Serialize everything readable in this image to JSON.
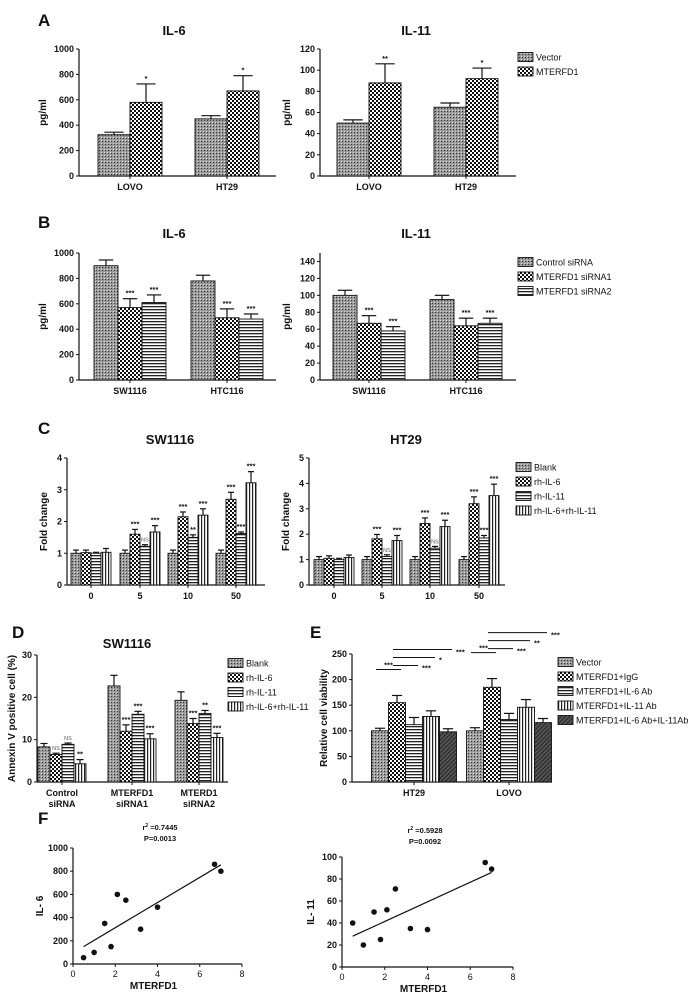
{
  "panel_labels": [
    "A",
    "B",
    "C",
    "D",
    "E",
    "F"
  ],
  "chart_data": [
    {
      "id": "A-IL6",
      "type": "bar",
      "title": "IL-6",
      "ylabel": "pg/ml",
      "ylim": [
        0,
        1000
      ],
      "yticks": [
        0,
        200,
        400,
        600,
        800,
        1000
      ],
      "categories": [
        "LOVO",
        "HT29"
      ],
      "legend": "none",
      "series": [
        {
          "name": "Vector",
          "values": [
            325,
            450
          ],
          "errors": [
            20,
            25
          ],
          "annotations": [
            "",
            ""
          ]
        },
        {
          "name": "MTERFD1",
          "values": [
            580,
            670
          ],
          "errors": [
            145,
            120
          ],
          "annotations": [
            "*",
            "*"
          ]
        }
      ]
    },
    {
      "id": "A-IL11",
      "type": "bar",
      "title": "IL-11",
      "ylabel": "pg/ml",
      "ylim": [
        0,
        120
      ],
      "yticks": [
        0,
        20,
        40,
        60,
        80,
        100,
        120
      ],
      "categories": [
        "LOVO",
        "HT29"
      ],
      "legend": "right",
      "series": [
        {
          "name": "Vector",
          "values": [
            50,
            65
          ],
          "errors": [
            3,
            4
          ],
          "annotations": [
            "",
            ""
          ]
        },
        {
          "name": "MTERFD1",
          "values": [
            88,
            92
          ],
          "errors": [
            18,
            10
          ],
          "annotations": [
            "**",
            "*"
          ]
        }
      ]
    },
    {
      "id": "B-IL6",
      "type": "bar",
      "title": "IL-6",
      "ylabel": "pg/ml",
      "ylim": [
        0,
        1000
      ],
      "yticks": [
        0,
        200,
        400,
        600,
        800,
        1000
      ],
      "categories": [
        "SW1116",
        "HTC116"
      ],
      "legend": "none",
      "series": [
        {
          "name": "Control siRNA",
          "values": [
            900,
            780
          ],
          "errors": [
            45,
            45
          ],
          "annotations": [
            "",
            ""
          ]
        },
        {
          "name": "MTERFD1 siRNA1",
          "values": [
            570,
            490
          ],
          "errors": [
            70,
            70
          ],
          "annotations": [
            "***",
            "***"
          ]
        },
        {
          "name": "MTERFD1 siRNA2",
          "values": [
            610,
            480
          ],
          "errors": [
            60,
            40
          ],
          "annotations": [
            "***",
            "***"
          ]
        }
      ]
    },
    {
      "id": "B-IL11",
      "type": "bar",
      "title": "IL-11",
      "ylabel": "pg/ml",
      "ylim": [
        0,
        150
      ],
      "yticks": [
        0,
        20,
        40,
        60,
        80,
        100,
        120,
        140
      ],
      "categories": [
        "SW1116",
        "HTC116"
      ],
      "legend": "right",
      "series": [
        {
          "name": "Control siRNA",
          "values": [
            100,
            95
          ],
          "errors": [
            6,
            5
          ],
          "annotations": [
            "",
            ""
          ]
        },
        {
          "name": "MTERFD1 siRNA1",
          "values": [
            67,
            64
          ],
          "errors": [
            9,
            9
          ],
          "annotations": [
            "***",
            "***"
          ]
        },
        {
          "name": "MTERFD1 siRNA2",
          "values": [
            58,
            67
          ],
          "errors": [
            5,
            6
          ],
          "annotations": [
            "***",
            "***"
          ]
        }
      ]
    },
    {
      "id": "C-SW1116",
      "type": "bar",
      "title": "SW1116",
      "ylabel": "Fold change",
      "ylim": [
        0,
        4
      ],
      "yticks": [
        0,
        1,
        2,
        3,
        4
      ],
      "categories": [
        "0",
        "5",
        "10",
        "50"
      ],
      "legend": "none",
      "series": [
        {
          "name": "Blank",
          "values": [
            1.0,
            1.0,
            1.0,
            1.0
          ],
          "errors": [
            0.1,
            0.1,
            0.1,
            0.1
          ],
          "annotations": [
            "",
            "",
            "",
            ""
          ]
        },
        {
          "name": "rh-IL-6",
          "values": [
            1.02,
            1.6,
            2.15,
            2.7
          ],
          "errors": [
            0.08,
            0.15,
            0.15,
            0.22
          ],
          "annotations": [
            "",
            "***",
            "***",
            "***"
          ]
        },
        {
          "name": "rh-IL-11",
          "values": [
            1.0,
            1.22,
            1.5,
            1.62
          ],
          "errors": [
            0.03,
            0.05,
            0.08,
            0.05
          ],
          "annotations": [
            "",
            "NS",
            "**",
            "***"
          ]
        },
        {
          "name": "rh-IL-6+rh-IL-11",
          "values": [
            1.03,
            1.67,
            2.2,
            3.22
          ],
          "errors": [
            0.12,
            0.2,
            0.2,
            0.35
          ],
          "annotations": [
            "",
            "***",
            "***",
            "***"
          ]
        }
      ]
    },
    {
      "id": "C-HT29",
      "type": "bar",
      "title": "HT29",
      "ylabel": "Fold change",
      "ylim": [
        0,
        5
      ],
      "yticks": [
        0,
        1,
        2,
        3,
        4,
        5
      ],
      "categories": [
        "0",
        "5",
        "10",
        "50"
      ],
      "legend": "right",
      "series": [
        {
          "name": "Blank",
          "values": [
            1.0,
            1.0,
            1.0,
            1.0
          ],
          "errors": [
            0.12,
            0.12,
            0.12,
            0.12
          ],
          "annotations": [
            "",
            "",
            "",
            ""
          ]
        },
        {
          "name": "rh-IL-6",
          "values": [
            1.05,
            1.82,
            2.42,
            3.2
          ],
          "errors": [
            0.1,
            0.17,
            0.22,
            0.27
          ],
          "annotations": [
            "",
            "***",
            "***",
            "***"
          ]
        },
        {
          "name": "rh-IL-11",
          "values": [
            1.0,
            1.12,
            1.45,
            1.85
          ],
          "errors": [
            0.05,
            0.07,
            0.07,
            0.1
          ],
          "annotations": [
            "",
            "NS",
            "NS",
            "***"
          ]
        },
        {
          "name": "rh-IL-6+rh-IL-11",
          "values": [
            1.08,
            1.75,
            2.3,
            3.52
          ],
          "errors": [
            0.1,
            0.2,
            0.25,
            0.45
          ],
          "annotations": [
            "",
            "***",
            "***",
            "***"
          ]
        }
      ]
    },
    {
      "id": "D",
      "type": "bar",
      "title": "SW1116",
      "ylabel": "Annexin V positive cell (%)",
      "ylim": [
        0,
        30
      ],
      "yticks": [
        0,
        10,
        20,
        30
      ],
      "categories": [
        "Control siRNA",
        "MTERFD1 siRNA1",
        "MTERD1 siRNA2"
      ],
      "legend": "right",
      "series": [
        {
          "name": "Blank",
          "values": [
            8.3,
            22.7,
            19.3
          ],
          "errors": [
            0.8,
            2.5,
            2.0
          ],
          "annotations": [
            "",
            "",
            ""
          ]
        },
        {
          "name": "rh-IL-6",
          "values": [
            6.5,
            12.0,
            13.8
          ],
          "errors": [
            0.3,
            1.5,
            1.2
          ],
          "annotations": [
            "NS",
            "***",
            "***"
          ]
        },
        {
          "name": "rh-IL-11",
          "values": [
            8.9,
            16.0,
            16.2
          ],
          "errors": [
            0.3,
            0.7,
            0.7
          ],
          "annotations": [
            "NS",
            "***",
            "**"
          ]
        },
        {
          "name": "rh-IL-6+rh-IL-11",
          "values": [
            4.3,
            10.2,
            10.5
          ],
          "errors": [
            1.0,
            1.2,
            1.0
          ],
          "annotations": [
            "**",
            "***",
            "***"
          ]
        }
      ]
    },
    {
      "id": "E",
      "type": "bar",
      "title": "",
      "ylabel": "Relative cell viability",
      "ylim": [
        0,
        250
      ],
      "yticks": [
        0,
        50,
        100,
        150,
        200,
        250
      ],
      "categories": [
        "HT29",
        "LOVO"
      ],
      "legend": "right",
      "series": [
        {
          "name": "Vector",
          "values": [
            100,
            100
          ],
          "errors": [
            5,
            6
          ],
          "annotations": [
            "",
            ""
          ]
        },
        {
          "name": "MTERFD1+IgG",
          "values": [
            155,
            185
          ],
          "errors": [
            14,
            17
          ],
          "annotations": [
            "",
            ""
          ]
        },
        {
          "name": "MTERFD1+IL-6 Ab",
          "values": [
            112,
            122
          ],
          "errors": [
            14,
            12
          ],
          "annotations": [
            "",
            ""
          ]
        },
        {
          "name": "MTERFD1+IL-11 Ab",
          "values": [
            128,
            146
          ],
          "errors": [
            11,
            15
          ],
          "annotations": [
            "",
            ""
          ]
        },
        {
          "name": "MTERFD1+IL-6 Ab+IL-11Ab",
          "values": [
            98,
            116
          ],
          "errors": [
            6,
            8
          ],
          "annotations": [
            "",
            ""
          ]
        }
      ],
      "comparisons": [
        {
          "category": "HT29",
          "from": 0,
          "to": 1,
          "label": "***"
        },
        {
          "category": "HT29",
          "from": 1,
          "to": 2,
          "label": "***"
        },
        {
          "category": "HT29",
          "from": 1,
          "to": 3,
          "label": "*"
        },
        {
          "category": "HT29",
          "from": 1,
          "to": 4,
          "label": "***"
        },
        {
          "category": "LOVO",
          "from": 0,
          "to": 1,
          "label": "***"
        },
        {
          "category": "LOVO",
          "from": 1,
          "to": 2,
          "label": "***"
        },
        {
          "category": "LOVO",
          "from": 1,
          "to": 3,
          "label": "**"
        },
        {
          "category": "LOVO",
          "from": 1,
          "to": 4,
          "label": "***"
        }
      ]
    },
    {
      "id": "F-IL6",
      "type": "scatter",
      "xlabel": "MTERFD1",
      "ylabel": "IL- 6",
      "xlim": [
        0,
        8
      ],
      "xticks": [
        0,
        2,
        4,
        6,
        8
      ],
      "ylim": [
        0,
        1000
      ],
      "yticks": [
        0,
        200,
        400,
        600,
        800,
        1000
      ],
      "points": [
        [
          0.5,
          55
        ],
        [
          1.0,
          100
        ],
        [
          1.5,
          350
        ],
        [
          1.8,
          150
        ],
        [
          2.1,
          600
        ],
        [
          2.5,
          550
        ],
        [
          3.2,
          300
        ],
        [
          4.0,
          490
        ],
        [
          6.7,
          860
        ],
        [
          7.0,
          800
        ]
      ],
      "fit": [
        [
          0.5,
          150
        ],
        [
          7.0,
          855
        ]
      ],
      "r2": "0.7445",
      "p_text": "P=0.0013"
    },
    {
      "id": "F-IL11",
      "type": "scatter",
      "xlabel": "MTERFD1",
      "ylabel": "IL- 11",
      "xlim": [
        0,
        8
      ],
      "xticks": [
        0,
        2,
        4,
        6,
        8
      ],
      "ylim": [
        0,
        100
      ],
      "yticks": [
        0,
        20,
        40,
        60,
        80,
        100
      ],
      "points": [
        [
          0.5,
          40
        ],
        [
          1.0,
          20
        ],
        [
          1.5,
          50
        ],
        [
          1.8,
          25
        ],
        [
          2.1,
          52
        ],
        [
          2.5,
          71
        ],
        [
          3.2,
          35
        ],
        [
          4.0,
          34
        ],
        [
          6.7,
          95
        ],
        [
          7.0,
          89
        ]
      ],
      "fit": [
        [
          0.5,
          28
        ],
        [
          7.0,
          86
        ]
      ],
      "r2": "0.5928",
      "p_text": "P=0.0092"
    }
  ]
}
